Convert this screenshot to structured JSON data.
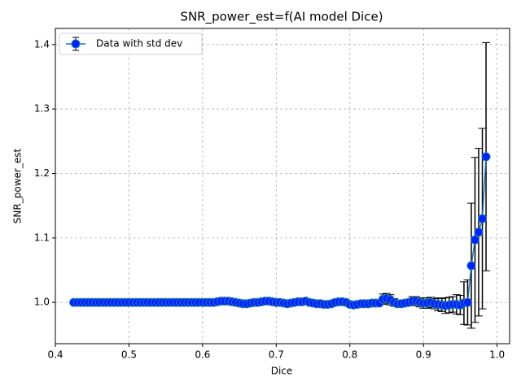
{
  "chart_data": {
    "type": "errorbar",
    "title": "SNR_power_est=f(AI model Dice)",
    "xlabel": "Dice",
    "ylabel": "SNR_power_est",
    "xlim": [
      0.4,
      1.017
    ],
    "ylim": [
      0.936,
      1.425
    ],
    "xticks": [
      0.4,
      0.5,
      0.6,
      0.7,
      0.8,
      0.9,
      {
        "value": 1,
        "label": "1.0"
      }
    ],
    "yticks": [
      {
        "value": 1,
        "label": "1.0"
      },
      1.1,
      1.2,
      1.3,
      1.4
    ],
    "grid": true,
    "legend": "upper left",
    "x": [
      0.425,
      0.43,
      0.435,
      0.44,
      0.445,
      0.45,
      0.455,
      0.46,
      0.465,
      0.47,
      0.475,
      0.48,
      0.485,
      0.49,
      0.495,
      0.5,
      0.505,
      0.51,
      0.515,
      0.52,
      0.525,
      0.53,
      0.535,
      0.54,
      0.545,
      0.55,
      0.555,
      0.56,
      0.565,
      0.57,
      0.575,
      0.58,
      0.585,
      0.59,
      0.595,
      0.6,
      0.605,
      0.61,
      0.615,
      0.62,
      0.625,
      0.63,
      0.635,
      0.64,
      0.645,
      0.65,
      0.655,
      0.66,
      0.665,
      0.67,
      0.675,
      0.68,
      0.685,
      0.69,
      0.695,
      0.7,
      0.705,
      0.71,
      0.715,
      0.72,
      0.725,
      0.73,
      0.735,
      0.74,
      0.745,
      0.75,
      0.755,
      0.76,
      0.765,
      0.77,
      0.775,
      0.78,
      0.785,
      0.79,
      0.795,
      0.8,
      0.805,
      0.81,
      0.815,
      0.82,
      0.825,
      0.83,
      0.835,
      0.84,
      0.845,
      0.85,
      0.855,
      0.86,
      0.865,
      0.87,
      0.875,
      0.88,
      0.885,
      0.89,
      0.895,
      0.9,
      0.905,
      0.91,
      0.915,
      0.92,
      0.925,
      0.93,
      0.935,
      0.94,
      0.945,
      0.95,
      0.955,
      0.96,
      0.965,
      0.97,
      0.975,
      0.98,
      0.985
    ],
    "series": [
      {
        "name": "Data with std dev",
        "color": "#1f77b4",
        "marker_color": "#0022ff",
        "error_color": "#000000",
        "values": [
          1.0,
          1.0,
          1.0,
          1.0,
          1.0,
          1.0,
          1.0,
          1.0,
          1.0,
          1.0,
          1.0,
          1.0,
          1.0,
          1.0,
          1.0,
          1.0,
          1.0,
          1.0,
          1.0,
          1.0,
          1.0,
          1.0,
          1.0,
          1.0,
          1.0,
          1.0,
          1.0,
          1.0,
          1.0,
          1.0,
          1.0,
          1.0,
          1.0,
          1.0,
          1.0,
          1.0,
          1.0,
          1.0,
          1.0,
          1.001,
          1.002,
          1.002,
          1.002,
          1.001,
          1.0,
          0.999,
          0.998,
          0.998,
          0.999,
          1.0,
          1.0,
          1.001,
          1.002,
          1.002,
          1.001,
          1.0,
          1.0,
          0.999,
          0.998,
          0.999,
          1.0,
          1.001,
          1.001,
          1.002,
          1.0,
          0.999,
          0.998,
          0.998,
          0.997,
          0.997,
          0.998,
          1.0,
          1.001,
          1.001,
          1.0,
          0.997,
          0.996,
          0.997,
          0.998,
          0.998,
          0.998,
          0.999,
          0.999,
          0.999,
          1.005,
          1.006,
          1.004,
          1.0,
          0.998,
          0.998,
          0.999,
          1.0,
          1.002,
          1.002,
          1.0,
          0.999,
          0.999,
          1.0,
          0.998,
          0.997,
          0.996,
          0.995,
          0.996,
          0.997,
          0.997,
          0.996,
          0.999,
          1.0,
          1.057,
          1.097,
          1.109,
          1.13,
          1.226
        ],
        "errors": [
          0.001,
          0.001,
          0.001,
          0.001,
          0.001,
          0.001,
          0.001,
          0.001,
          0.001,
          0.001,
          0.001,
          0.001,
          0.001,
          0.001,
          0.001,
          0.001,
          0.001,
          0.001,
          0.001,
          0.001,
          0.001,
          0.001,
          0.001,
          0.001,
          0.001,
          0.001,
          0.001,
          0.001,
          0.001,
          0.001,
          0.001,
          0.001,
          0.001,
          0.001,
          0.001,
          0.001,
          0.001,
          0.001,
          0.001,
          0.001,
          0.001,
          0.001,
          0.001,
          0.001,
          0.001,
          0.001,
          0.001,
          0.001,
          0.001,
          0.001,
          0.001,
          0.001,
          0.001,
          0.001,
          0.001,
          0.001,
          0.001,
          0.001,
          0.001,
          0.001,
          0.001,
          0.001,
          0.001,
          0.001,
          0.001,
          0.001,
          0.001,
          0.001,
          0.001,
          0.001,
          0.001,
          0.001,
          0.001,
          0.001,
          0.001,
          0.001,
          0.001,
          0.001,
          0.001,
          0.001,
          0.001,
          0.001,
          0.001,
          0.001,
          0.008,
          0.008,
          0.008,
          0.006,
          0.005,
          0.005,
          0.005,
          0.005,
          0.007,
          0.007,
          0.007,
          0.008,
          0.008,
          0.008,
          0.008,
          0.01,
          0.01,
          0.012,
          0.012,
          0.012,
          0.015,
          0.015,
          0.033,
          0.035,
          0.097,
          0.128,
          0.13,
          0.14,
          0.177
        ]
      }
    ]
  }
}
